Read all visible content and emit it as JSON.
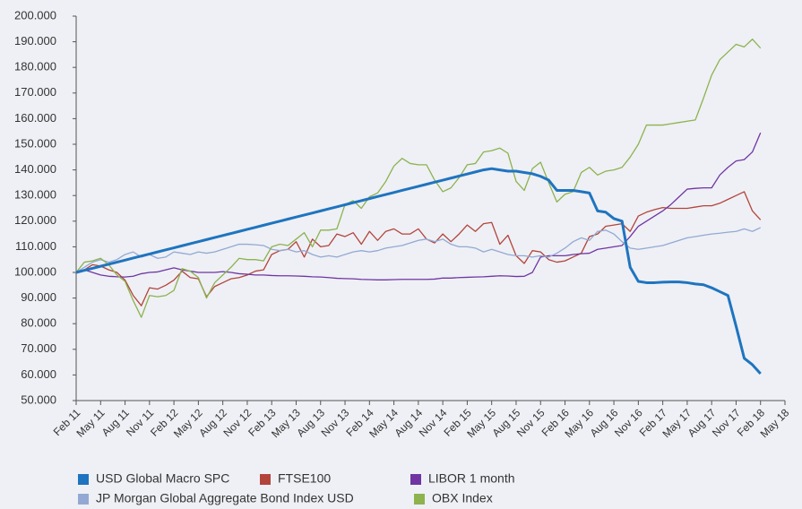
{
  "chart_data": {
    "type": "line",
    "x": [
      "2011-02",
      "2011-03",
      "2011-04",
      "2011-05",
      "2011-06",
      "2011-07",
      "2011-08",
      "2011-09",
      "2011-10",
      "2011-11",
      "2011-12",
      "2012-01",
      "2012-02",
      "2012-03",
      "2012-04",
      "2012-05",
      "2012-06",
      "2012-07",
      "2012-08",
      "2012-09",
      "2012-10",
      "2012-11",
      "2012-12",
      "2013-01",
      "2013-02",
      "2013-03",
      "2013-04",
      "2013-05",
      "2013-06",
      "2013-07",
      "2013-08",
      "2013-09",
      "2013-10",
      "2013-11",
      "2013-12",
      "2014-01",
      "2014-02",
      "2014-03",
      "2014-04",
      "2014-05",
      "2014-06",
      "2014-07",
      "2014-08",
      "2014-09",
      "2014-10",
      "2014-11",
      "2014-12",
      "2015-01",
      "2015-02",
      "2015-03",
      "2015-04",
      "2015-05",
      "2015-06",
      "2015-07",
      "2015-08",
      "2015-09",
      "2015-10",
      "2015-11",
      "2015-12",
      "2016-01",
      "2016-02",
      "2016-03",
      "2016-04",
      "2016-05",
      "2016-06",
      "2016-07",
      "2016-08",
      "2016-09",
      "2016-10",
      "2016-11",
      "2016-12",
      "2017-01",
      "2017-02",
      "2017-03",
      "2017-04",
      "2017-05",
      "2017-06",
      "2017-07",
      "2017-08",
      "2017-09",
      "2017-10",
      "2017-11",
      "2017-12",
      "2018-01",
      "2018-02"
    ],
    "series": [
      {
        "name": "USD Global Macro SPC",
        "color": "#1f74bf",
        "values": [
          100,
          100.8,
          101.6,
          102.4,
          103.2,
          104,
          104.8,
          105.6,
          106.4,
          107.2,
          108,
          108.8,
          109.6,
          110.4,
          111.2,
          112,
          112.8,
          113.6,
          114.4,
          115.2,
          116,
          116.8,
          117.6,
          118.4,
          119.2,
          120,
          120.8,
          121.6,
          122.4,
          123.2,
          124,
          124.8,
          125.6,
          126.4,
          127.2,
          128,
          128.8,
          129.6,
          130.4,
          131.2,
          132,
          132.8,
          133.6,
          134.4,
          135.2,
          136,
          136.8,
          137.6,
          138.4,
          139.2,
          140,
          140.5,
          140,
          139.5,
          139.5,
          139,
          138.5,
          137.5,
          136,
          132,
          132,
          132,
          131.5,
          131,
          124,
          123.5,
          121,
          120,
          102,
          96.5,
          96,
          96,
          96.2,
          96.3,
          96.3,
          96,
          95.5,
          95.2,
          94,
          92.5,
          91,
          79,
          66.5,
          64,
          60.5
        ]
      },
      {
        "name": "FTSE100",
        "color": "#b3443c",
        "values": [
          100,
          101,
          103,
          102.5,
          101,
          100,
          97,
          91,
          87,
          94,
          93.5,
          95,
          97,
          100.5,
          98,
          97.5,
          90.5,
          94.5,
          96,
          97.5,
          98,
          99,
          100.5,
          101,
          107,
          108.5,
          109,
          112,
          106,
          113,
          110,
          110.5,
          115,
          114,
          115.5,
          111,
          116,
          112.5,
          116,
          117,
          115,
          115,
          117,
          113,
          111.5,
          115,
          112,
          115,
          118.5,
          116,
          119,
          119.5,
          111,
          114.5,
          106.5,
          103.5,
          108.5,
          108,
          105,
          104,
          104.5,
          106,
          107.5,
          114,
          115,
          118,
          118.5,
          119,
          116,
          122,
          123.5,
          124.5,
          125.3,
          125,
          125,
          125,
          125.5,
          126,
          126,
          127,
          128.5,
          130,
          131.5,
          124,
          120.5
        ]
      },
      {
        "name": "LIBOR 1 month",
        "color": "#7035a3",
        "values": [
          100,
          101,
          100,
          99,
          98.5,
          98.3,
          98.2,
          98.5,
          99.5,
          100,
          100.2,
          101,
          101.8,
          101,
          100.5,
          100,
          100,
          100,
          100.3,
          100,
          99.5,
          99.3,
          99,
          99,
          98.8,
          98.7,
          98.7,
          98.6,
          98.5,
          98.3,
          98.2,
          98,
          97.7,
          97.6,
          97.5,
          97.3,
          97.2,
          97.1,
          97.1,
          97.2,
          97.3,
          97.3,
          97.3,
          97.3,
          97.4,
          97.8,
          97.8,
          98,
          98.1,
          98.2,
          98.3,
          98.5,
          98.7,
          98.6,
          98.4,
          98.5,
          100,
          106,
          106.5,
          106.5,
          106.5,
          107,
          107.3,
          107.5,
          109,
          109.5,
          110,
          110.5,
          114,
          118,
          120,
          122,
          124,
          126.5,
          129.5,
          132.5,
          132.8,
          133,
          133,
          138,
          141,
          143.5,
          144,
          147,
          154.5
        ]
      },
      {
        "name": "JP Morgan Global Aggregate Bond Index USD",
        "color": "#93a9d3",
        "values": [
          100,
          102,
          104,
          105,
          104,
          105,
          107,
          108,
          106,
          107,
          105.5,
          106,
          108,
          107.5,
          107,
          108,
          107.5,
          108,
          109,
          110,
          111,
          111,
          110.8,
          110.5,
          109,
          108.5,
          109,
          108,
          108.5,
          107,
          106,
          106.5,
          106,
          107,
          108,
          108.5,
          108,
          108.5,
          109.5,
          110,
          110.5,
          111.5,
          112.5,
          113,
          112,
          113,
          111,
          110,
          110,
          109.5,
          108,
          109,
          108,
          107,
          106.5,
          106.5,
          106,
          106.5,
          106,
          107.5,
          109.5,
          112,
          113.5,
          112.5,
          116,
          116.5,
          115,
          112,
          109.5,
          109,
          109.5,
          110,
          110.5,
          111.5,
          112.5,
          113.5,
          114,
          114.5,
          115,
          115.3,
          115.7,
          116,
          117,
          116,
          117.5
        ]
      },
      {
        "name": "OBX Index",
        "color": "#8db24e",
        "values": [
          100,
          104,
          104.5,
          105.5,
          103,
          99,
          96.5,
          89,
          82.5,
          91,
          90.5,
          91,
          93,
          101.5,
          100.5,
          98,
          90,
          96,
          99,
          102,
          105.5,
          105,
          105,
          104.5,
          110,
          111,
          110.5,
          113,
          115.5,
          110,
          116.5,
          116.5,
          117,
          126.5,
          128,
          125,
          129.5,
          131,
          135.5,
          141.5,
          144.5,
          142.5,
          142,
          142,
          136,
          131.5,
          133,
          137,
          142,
          142.5,
          147,
          147.5,
          148.5,
          146.5,
          135.5,
          132,
          140.5,
          143,
          135,
          127.5,
          130.5,
          131.5,
          139,
          141,
          138,
          139.5,
          140,
          141,
          145,
          150,
          157.5,
          157.5,
          157.5,
          158,
          158.5,
          159,
          159.5,
          168,
          177,
          183,
          186,
          189,
          188,
          191,
          187.5
        ]
      }
    ],
    "xlim": [
      "2011-02",
      "2018-05"
    ],
    "xticks": [
      {
        "value": "2011-02",
        "label": "Feb 11"
      },
      {
        "value": "2011-05",
        "label": "May 11"
      },
      {
        "value": "2011-08",
        "label": "Aug 11"
      },
      {
        "value": "2011-11",
        "label": "Nov 11"
      },
      {
        "value": "2012-02",
        "label": "Feb 12"
      },
      {
        "value": "2012-05",
        "label": "May 12"
      },
      {
        "value": "2012-08",
        "label": "Aug 12"
      },
      {
        "value": "2012-11",
        "label": "Nov 12"
      },
      {
        "value": "2013-02",
        "label": "Feb 13"
      },
      {
        "value": "2013-05",
        "label": "May 13"
      },
      {
        "value": "2013-08",
        "label": "Aug 13"
      },
      {
        "value": "2013-11",
        "label": "Nov 13"
      },
      {
        "value": "2014-02",
        "label": "Feb 14"
      },
      {
        "value": "2014-05",
        "label": "May 14"
      },
      {
        "value": "2014-08",
        "label": "Aug 14"
      },
      {
        "value": "2014-11",
        "label": "Nov 14"
      },
      {
        "value": "2015-02",
        "label": "Feb 15"
      },
      {
        "value": "2015-05",
        "label": "May 15"
      },
      {
        "value": "2015-08",
        "label": "Aug 15"
      },
      {
        "value": "2015-11",
        "label": "Nov 15"
      },
      {
        "value": "2016-02",
        "label": "Feb 16"
      },
      {
        "value": "2016-05",
        "label": "May 16"
      },
      {
        "value": "2016-08",
        "label": "Aug 16"
      },
      {
        "value": "2016-11",
        "label": "Nov 16"
      },
      {
        "value": "2017-02",
        "label": "Feb 17"
      },
      {
        "value": "2017-05",
        "label": "May 17"
      },
      {
        "value": "2017-08",
        "label": "Aug 17"
      },
      {
        "value": "2017-11",
        "label": "Nov 17"
      },
      {
        "value": "2018-02",
        "label": "Feb 18"
      },
      {
        "value": "2018-05",
        "label": "May 18"
      }
    ],
    "ylim": [
      50,
      200
    ],
    "yticks": [
      {
        "value": 50,
        "label": "50.000"
      },
      {
        "value": 60,
        "label": "60.000"
      },
      {
        "value": 70,
        "label": "70.000"
      },
      {
        "value": 80,
        "label": "80.000"
      },
      {
        "value": 90,
        "label": "90.000"
      },
      {
        "value": 100,
        "label": "100.000"
      },
      {
        "value": 110,
        "label": "110.000"
      },
      {
        "value": 120,
        "label": "120.000"
      },
      {
        "value": 130,
        "label": "130.000"
      },
      {
        "value": 140,
        "label": "140.000"
      },
      {
        "value": 150,
        "label": "150.000"
      },
      {
        "value": 160,
        "label": "160.000"
      },
      {
        "value": 170,
        "label": "170.000"
      },
      {
        "value": 180,
        "label": "180.000"
      },
      {
        "value": 190,
        "label": "190.000"
      },
      {
        "value": 200,
        "label": "200.000"
      }
    ],
    "grid": false,
    "legend": "bottom"
  }
}
